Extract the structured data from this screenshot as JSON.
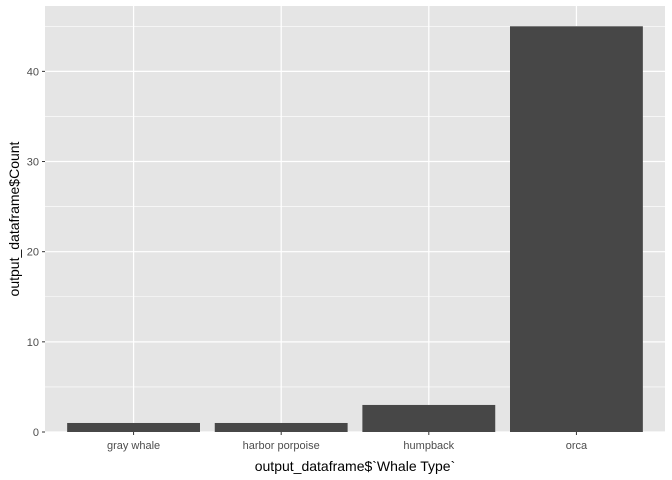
{
  "chart_data": {
    "type": "bar",
    "categories": [
      "gray whale",
      "harbor porpoise",
      "humpback",
      "orca"
    ],
    "values": [
      1,
      1,
      3,
      45
    ],
    "title": "",
    "xlabel": "output_dataframe$`Whale Type`",
    "ylabel": "output_dataframe$Count",
    "ylim": [
      0,
      47.25
    ],
    "yticks": [
      0,
      10,
      20,
      30,
      40
    ],
    "grid": true,
    "colors": {
      "panel": "#e5e5e5",
      "grid_major": "#ffffff",
      "bar": "#474747",
      "tick": "#333333",
      "tick_label": "#4d4d4d"
    }
  }
}
